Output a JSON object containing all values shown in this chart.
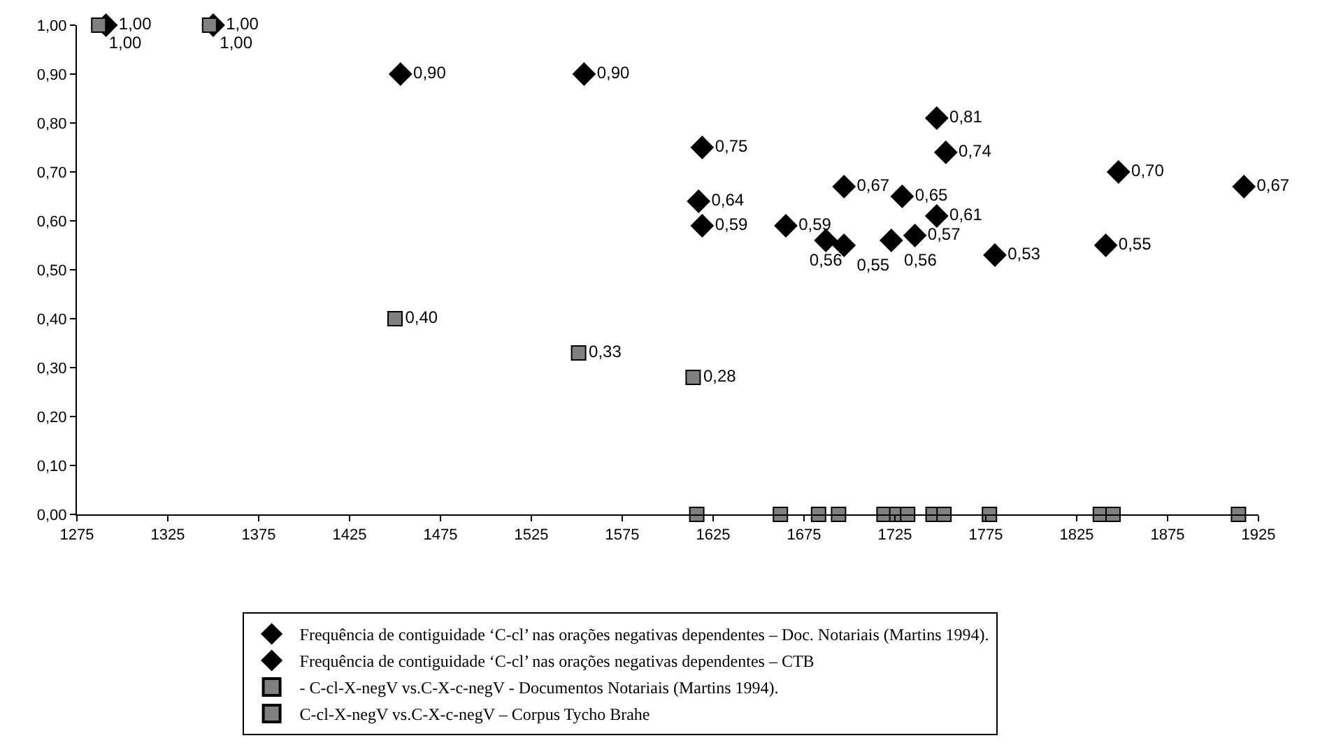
{
  "chart_data": {
    "type": "scatter",
    "xlim": [
      1275,
      1925
    ],
    "xticks": [
      1275,
      1325,
      1375,
      1425,
      1475,
      1525,
      1575,
      1625,
      1675,
      1725,
      1775,
      1825,
      1875,
      1925
    ],
    "ylim": [
      0,
      1
    ],
    "yticks": [
      {
        "value": 0,
        "label": "0,00"
      },
      {
        "value": 0.1,
        "label": "0,10"
      },
      {
        "value": 0.2,
        "label": "0,20"
      },
      {
        "value": 0.3,
        "label": "0,30"
      },
      {
        "value": 0.4,
        "label": "0,40"
      },
      {
        "value": 0.5,
        "label": "0,50"
      },
      {
        "value": 0.6,
        "label": "0,60"
      },
      {
        "value": 0.7,
        "label": "0,70"
      },
      {
        "value": 0.8,
        "label": "0,80"
      },
      {
        "value": 0.9,
        "label": "0,90"
      },
      {
        "value": 1,
        "label": "1,00"
      }
    ],
    "legend": "bottom",
    "series": [
      {
        "name": "Frequência de contiguidade ‘C-cl’ nas orações negativas dependentes – Doc. Notariais (Martins 1994).",
        "color": "#000000",
        "marker": "diamond",
        "x": [
          1291,
          1350,
          1453,
          1554
        ],
        "values": [
          1.0,
          1.0,
          0.9,
          0.9
        ],
        "value_labels": [
          "1,00",
          "1,00",
          "0,90",
          "0,90"
        ]
      },
      {
        "name": "Frequência de contiguidade ‘C-cl’ nas orações negativas dependentes – CTB",
        "color": "#000000",
        "marker": "diamond",
        "x": [
          1619,
          1617,
          1619,
          1665,
          1687,
          1697,
          1697,
          1729,
          1723,
          1736,
          1748,
          1748,
          1753,
          1780,
          1848,
          1841,
          1917
        ],
        "values": [
          0.75,
          0.64,
          0.59,
          0.59,
          0.56,
          0.55,
          0.67,
          0.65,
          0.56,
          0.57,
          0.61,
          0.81,
          0.74,
          0.53,
          0.7,
          0.55,
          0.67
        ],
        "value_labels": [
          "0,75",
          "0,64",
          "0,59",
          "0,59",
          "0,56",
          "0,55",
          "0,67",
          "0,65",
          "0,56",
          "0,57",
          "0,61",
          "0,81",
          "0,74",
          "0,53",
          "0,70",
          "0,55",
          "0,67"
        ]
      },
      {
        "name": "- C-cl-X-negV vs.C-X-c-negV - Documentos Notariais (Martins 1994).",
        "color": "#808080",
        "marker": "square",
        "x": [
          1287,
          1348,
          1450,
          1551
        ],
        "values": [
          1.0,
          1.0,
          0.4,
          0.33
        ],
        "value_labels": [
          "1,00",
          "1,00",
          "0,40",
          "0,33"
        ]
      },
      {
        "name": "C-cl-X-negV vs.C-X-c-negV – Corpus Tycho Brahe",
        "color": "#808080",
        "marker": "square",
        "x": [
          1614,
          1616,
          1662,
          1683,
          1694,
          1719,
          1726,
          1732,
          1746,
          1752,
          1777,
          1838,
          1845,
          1914
        ],
        "values": [
          0.28,
          0,
          0,
          0,
          0,
          0,
          0,
          0,
          0,
          0,
          0,
          0,
          0,
          0
        ],
        "value_labels": [
          "0,28",
          null,
          null,
          null,
          null,
          null,
          null,
          null,
          null,
          null,
          null,
          null,
          null,
          null
        ]
      }
    ]
  }
}
